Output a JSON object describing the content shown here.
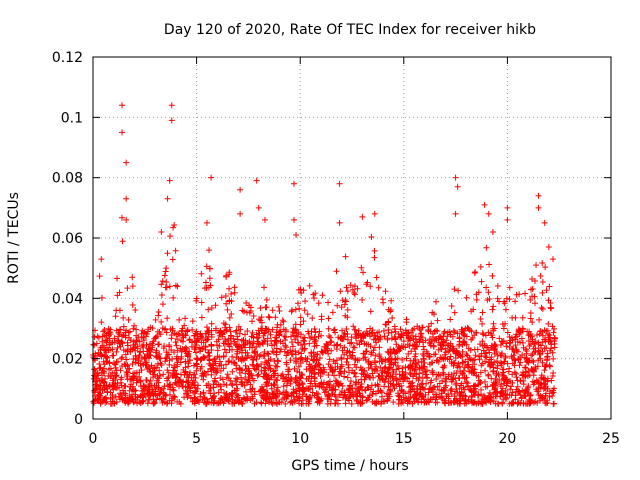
{
  "chart_data": {
    "type": "scatter",
    "title": "Day 120 of 2020, Rate Of TEC Index for receiver hikb",
    "xlabel": "GPS time / hours",
    "ylabel": "ROTI / TECUs",
    "xlim": [
      0,
      25
    ],
    "ylim": [
      0,
      0.12
    ],
    "x_ticks": [
      0,
      5,
      10,
      15,
      20,
      25
    ],
    "y_ticks": [
      0,
      0.02,
      0.04,
      0.06,
      0.08,
      0.1,
      0.12
    ],
    "x_tick_labels": [
      "0",
      "5",
      "10",
      "15",
      "20",
      "25"
    ],
    "y_tick_labels": [
      "0",
      "0.02",
      "0.04",
      "0.06",
      "0.08",
      "0.1",
      "0.12"
    ],
    "grid": true,
    "marker": "+",
    "color": "#ff0000",
    "x_range_of_data": [
      0,
      22.3
    ],
    "typical_band": [
      0.005,
      0.03
    ],
    "notable_points": [
      {
        "x": 0.4,
        "y": 0.053
      },
      {
        "x": 1.4,
        "y": 0.104
      },
      {
        "x": 1.4,
        "y": 0.095
      },
      {
        "x": 1.6,
        "y": 0.085
      },
      {
        "x": 1.6,
        "y": 0.073
      },
      {
        "x": 1.6,
        "y": 0.066
      },
      {
        "x": 3.8,
        "y": 0.104
      },
      {
        "x": 3.8,
        "y": 0.099
      },
      {
        "x": 3.7,
        "y": 0.079
      },
      {
        "x": 3.6,
        "y": 0.073
      },
      {
        "x": 3.3,
        "y": 0.062
      },
      {
        "x": 5.7,
        "y": 0.08
      },
      {
        "x": 5.5,
        "y": 0.065
      },
      {
        "x": 5.6,
        "y": 0.056
      },
      {
        "x": 7.1,
        "y": 0.076
      },
      {
        "x": 7.1,
        "y": 0.068
      },
      {
        "x": 7.9,
        "y": 0.079
      },
      {
        "x": 8.0,
        "y": 0.07
      },
      {
        "x": 8.3,
        "y": 0.066
      },
      {
        "x": 9.7,
        "y": 0.078
      },
      {
        "x": 9.7,
        "y": 0.066
      },
      {
        "x": 9.8,
        "y": 0.061
      },
      {
        "x": 11.9,
        "y": 0.078
      },
      {
        "x": 11.9,
        "y": 0.065
      },
      {
        "x": 13.6,
        "y": 0.068
      },
      {
        "x": 13.0,
        "y": 0.067
      },
      {
        "x": 17.5,
        "y": 0.08
      },
      {
        "x": 17.6,
        "y": 0.077
      },
      {
        "x": 17.5,
        "y": 0.068
      },
      {
        "x": 18.9,
        "y": 0.071
      },
      {
        "x": 19.1,
        "y": 0.068
      },
      {
        "x": 19.3,
        "y": 0.062
      },
      {
        "x": 20.0,
        "y": 0.07
      },
      {
        "x": 20.0,
        "y": 0.066
      },
      {
        "x": 21.5,
        "y": 0.074
      },
      {
        "x": 21.5,
        "y": 0.07
      },
      {
        "x": 21.8,
        "y": 0.065
      },
      {
        "x": 22.0,
        "y": 0.057
      },
      {
        "x": 22.2,
        "y": 0.053
      }
    ],
    "envelope": [
      [
        0.0,
        0.025
      ],
      [
        0.3,
        0.05
      ],
      [
        0.6,
        0.03
      ],
      [
        1.0,
        0.035
      ],
      [
        1.5,
        0.075
      ],
      [
        2.0,
        0.04
      ],
      [
        2.5,
        0.03
      ],
      [
        3.0,
        0.032
      ],
      [
        3.5,
        0.055
      ],
      [
        3.9,
        0.07
      ],
      [
        4.3,
        0.04
      ],
      [
        4.8,
        0.038
      ],
      [
        5.5,
        0.056
      ],
      [
        6.0,
        0.035
      ],
      [
        6.5,
        0.05
      ],
      [
        7.0,
        0.045
      ],
      [
        7.5,
        0.04
      ],
      [
        8.0,
        0.048
      ],
      [
        8.5,
        0.042
      ],
      [
        9.0,
        0.038
      ],
      [
        9.5,
        0.035
      ],
      [
        10.0,
        0.048
      ],
      [
        10.5,
        0.045
      ],
      [
        11.0,
        0.04
      ],
      [
        11.5,
        0.048
      ],
      [
        12.0,
        0.06
      ],
      [
        12.5,
        0.045
      ],
      [
        13.0,
        0.052
      ],
      [
        13.5,
        0.062
      ],
      [
        14.0,
        0.045
      ],
      [
        14.5,
        0.038
      ],
      [
        15.0,
        0.035
      ],
      [
        15.5,
        0.032
      ],
      [
        16.0,
        0.03
      ],
      [
        16.5,
        0.04
      ],
      [
        17.0,
        0.03
      ],
      [
        17.5,
        0.045
      ],
      [
        18.0,
        0.04
      ],
      [
        18.5,
        0.05
      ],
      [
        19.0,
        0.058
      ],
      [
        19.5,
        0.045
      ],
      [
        20.0,
        0.045
      ],
      [
        20.5,
        0.042
      ],
      [
        21.0,
        0.045
      ],
      [
        21.5,
        0.055
      ],
      [
        22.0,
        0.05
      ],
      [
        22.3,
        0.03
      ]
    ]
  }
}
